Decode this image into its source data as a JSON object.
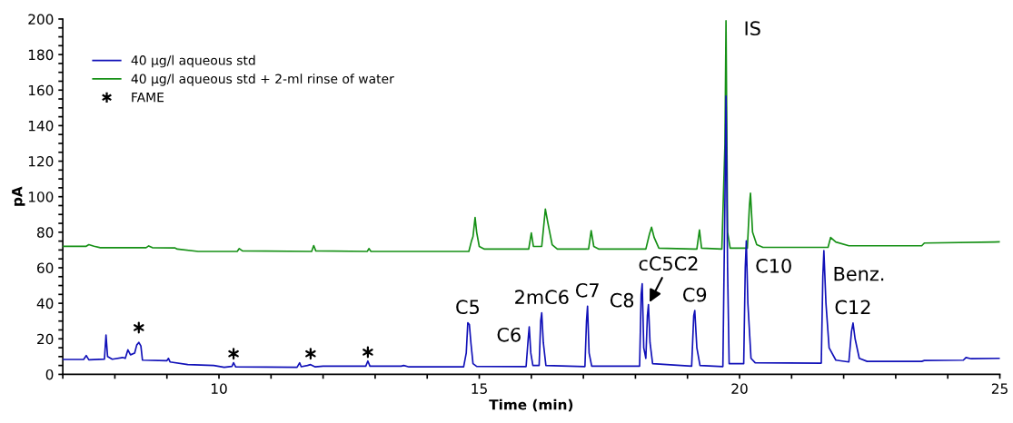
{
  "chart_data": {
    "type": "line",
    "xlabel": "Time (min)",
    "ylabel": "pA",
    "xlim": [
      7,
      25
    ],
    "ylim": [
      0,
      200
    ],
    "xticks": [
      {
        "value": 7,
        "label": null
      },
      {
        "value": 8,
        "label": null
      },
      {
        "value": 9,
        "label": null
      },
      10,
      {
        "value": 11,
        "label": null
      },
      {
        "value": 12,
        "label": null
      },
      {
        "value": 13,
        "label": null
      },
      {
        "value": 14,
        "label": null
      },
      15,
      {
        "value": 16,
        "label": null
      },
      {
        "value": 17,
        "label": null
      },
      {
        "value": 18,
        "label": null
      },
      {
        "value": 19,
        "label": null
      },
      20,
      {
        "value": 21,
        "label": null
      },
      {
        "value": 22,
        "label": null
      },
      {
        "value": 23,
        "label": null
      },
      {
        "value": 24,
        "label": null
      },
      25
    ],
    "yticks": [
      0,
      {
        "value": 5,
        "label": null
      },
      {
        "value": 10,
        "label": null
      },
      {
        "value": 15,
        "label": null
      },
      20,
      {
        "value": 25,
        "label": null
      },
      {
        "value": 30,
        "label": null
      },
      {
        "value": 35,
        "label": null
      },
      40,
      {
        "value": 45,
        "label": null
      },
      {
        "value": 50,
        "label": null
      },
      {
        "value": 55,
        "label": null
      },
      60,
      {
        "value": 65,
        "label": null
      },
      {
        "value": 70,
        "label": null
      },
      {
        "value": 75,
        "label": null
      },
      80,
      {
        "value": 85,
        "label": null
      },
      {
        "value": 90,
        "label": null
      },
      {
        "value": 95,
        "label": null
      },
      100,
      {
        "value": 105,
        "label": null
      },
      {
        "value": 110,
        "label": null
      },
      {
        "value": 115,
        "label": null
      },
      120,
      {
        "value": 125,
        "label": null
      },
      {
        "value": 130,
        "label": null
      },
      {
        "value": 135,
        "label": null
      },
      140,
      {
        "value": 145,
        "label": null
      },
      {
        "value": 150,
        "label": null
      },
      {
        "value": 155,
        "label": null
      },
      160,
      {
        "value": 165,
        "label": null
      },
      {
        "value": 170,
        "label": null
      },
      {
        "value": 175,
        "label": null
      },
      180,
      {
        "value": 185,
        "label": null
      },
      {
        "value": 190,
        "label": null
      },
      {
        "value": 195,
        "label": null
      },
      200
    ],
    "grid": false,
    "legend": "top left",
    "series": [
      {
        "name": "40 µg/l aqueous std",
        "color": "#1010b8",
        "x": [
          7.0,
          7.4,
          7.45,
          7.5,
          7.8,
          7.83,
          7.86,
          7.95,
          8.15,
          8.2,
          8.25,
          8.3,
          8.38,
          8.42,
          8.46,
          8.5,
          8.53,
          9.0,
          9.03,
          9.06,
          9.4,
          9.9,
          10.1,
          10.25,
          10.28,
          10.32,
          11.5,
          11.55,
          11.58,
          11.7,
          11.76,
          11.85,
          12.0,
          12.82,
          12.86,
          12.9,
          13.5,
          13.55,
          13.65,
          14.7,
          14.75,
          14.78,
          14.81,
          14.84,
          14.88,
          14.95,
          15.9,
          15.94,
          15.96,
          15.99,
          16.03,
          16.15,
          16.18,
          16.2,
          16.23,
          16.28,
          17.03,
          17.06,
          17.08,
          17.11,
          17.16,
          18.08,
          18.11,
          18.13,
          18.16,
          18.2,
          18.23,
          18.25,
          18.28,
          18.33,
          19.08,
          19.12,
          19.14,
          19.18,
          19.24,
          19.68,
          19.72,
          19.74,
          19.77,
          19.8,
          20.08,
          20.11,
          20.13,
          20.16,
          20.22,
          20.3,
          21.57,
          21.6,
          21.62,
          21.66,
          21.72,
          21.85,
          22.1,
          22.15,
          22.18,
          22.22,
          22.3,
          22.45,
          23.5,
          23.55,
          24.3,
          24.35,
          24.45,
          25.0
        ],
        "values": [
          8.4,
          8.4,
          10.6,
          8.2,
          8.6,
          22.2,
          10,
          8.5,
          9.5,
          9,
          13.8,
          11,
          12,
          16.5,
          18,
          16,
          8,
          7.7,
          9,
          7,
          5.5,
          5,
          4,
          4.5,
          6.6,
          4.2,
          4,
          6.5,
          4.3,
          5,
          5.5,
          4.2,
          4.6,
          4.6,
          7.5,
          4.6,
          4.6,
          5,
          4.2,
          4.2,
          12,
          29,
          28,
          17.6,
          6,
          4.5,
          4.4,
          20,
          26.7,
          12,
          5,
          5,
          30,
          34.6,
          18,
          5,
          4.4,
          30,
          38.4,
          12,
          4.6,
          4.6,
          45,
          51,
          15,
          9,
          33,
          39.3,
          18,
          6,
          4.6,
          33,
          35.9,
          15,
          5,
          4.4,
          100,
          156.7,
          60,
          6,
          6,
          60,
          75.2,
          40,
          9,
          6.5,
          6.3,
          55,
          69.6,
          40,
          15,
          8,
          7,
          24,
          28.9,
          20,
          9,
          7.3,
          7.3,
          7.8,
          8,
          9.5,
          8.8,
          9
        ]
      },
      {
        "name": "40 µg/l aqueous std + 2-ml rinse of water",
        "color": "#159015",
        "x": [
          7.0,
          7.45,
          7.5,
          7.6,
          7.72,
          8.6,
          8.65,
          8.72,
          9.15,
          9.2,
          9.6,
          10.35,
          10.39,
          10.45,
          11.78,
          11.82,
          11.86,
          12.85,
          12.88,
          12.92,
          14.8,
          14.85,
          14.88,
          14.92,
          14.95,
          15.0,
          15.1,
          15.95,
          16.0,
          16.04,
          16.2,
          16.27,
          16.32,
          16.4,
          16.5,
          17.1,
          17.15,
          17.2,
          17.3,
          18.2,
          18.27,
          18.31,
          18.36,
          18.45,
          19.18,
          19.23,
          19.27,
          19.66,
          19.72,
          19.74,
          19.77,
          19.82,
          20.15,
          20.19,
          20.21,
          20.25,
          20.33,
          20.45,
          21.7,
          21.75,
          21.85,
          22.1,
          23.5,
          23.55,
          24.9,
          25.0
        ],
        "values": [
          72.1,
          72.1,
          73,
          72.1,
          71.3,
          71.3,
          72.3,
          71.3,
          71.2,
          70.5,
          69.2,
          69.2,
          70.8,
          69.5,
          69.2,
          72.5,
          69.5,
          69.2,
          70.8,
          69.2,
          69.2,
          75,
          77.6,
          88.3,
          80,
          72,
          70.5,
          70.5,
          79.6,
          72,
          72,
          93,
          85,
          73,
          70.5,
          70.5,
          80.9,
          72,
          70.5,
          70.5,
          79,
          82.8,
          77,
          71,
          70.5,
          81.3,
          71,
          70.5,
          130,
          199,
          80,
          71,
          71,
          95,
          102,
          80,
          73,
          71.5,
          71.5,
          77.1,
          74.5,
          72.4,
          72.4,
          73.9,
          74.5,
          74.6
        ]
      },
      {
        "name": "FAME",
        "type": "scatter",
        "marker": "cross",
        "color": "#000000",
        "x": [
          8.46,
          10.28,
          11.76,
          12.86
        ],
        "values": [
          26.3,
          11.6,
          11.6,
          12.5
        ]
      }
    ],
    "annotations": [
      {
        "text": "C5",
        "x": 14.78,
        "y": 29
      },
      {
        "text": "C6",
        "x": 15.96,
        "y": 26.7
      },
      {
        "text": "2mC6",
        "x": 16.2,
        "y": 34.6
      },
      {
        "text": "C7",
        "x": 17.08,
        "y": 38.4
      },
      {
        "text": "C8",
        "x": 18.13,
        "y": 51
      },
      {
        "text": "cC5C2",
        "x": 18.25,
        "y": 39.3
      },
      {
        "text": "C9",
        "x": 19.14,
        "y": 35.9
      },
      {
        "text": "IS",
        "x": 19.74,
        "y": 199
      },
      {
        "text": "C10",
        "x": 20.13,
        "y": 75.2
      },
      {
        "text": "Benz.",
        "x": 21.62,
        "y": 69.6
      },
      {
        "text": "C12",
        "x": 22.18,
        "y": 28.9
      }
    ]
  }
}
